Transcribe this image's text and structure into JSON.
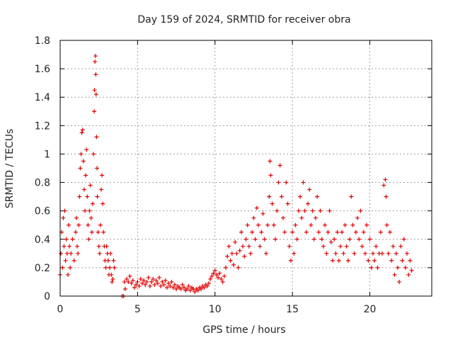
{
  "chart_data": {
    "type": "scatter",
    "title": "Day 159 of 2024, SRMTID for receiver obra",
    "xlabel": "GPS time / hours",
    "ylabel": "SRMTID / TECUs",
    "xlim": [
      0,
      24
    ],
    "ylim": [
      0,
      1.8
    ],
    "grid": true,
    "marker": "+",
    "x_ticks": [
      0,
      5,
      10,
      15,
      20
    ],
    "y_ticks": [
      0,
      0.2,
      0.4,
      0.6,
      0.8,
      1,
      1.2,
      1.4,
      1.6,
      1.8
    ],
    "x_tick_labels": [
      "0",
      "5",
      "10",
      "15",
      "20"
    ],
    "y_tick_labels": [
      "0",
      "0.2",
      "0.4",
      "0.6",
      "0.8",
      "1",
      "1.2",
      "1.4",
      "1.6",
      "1.8"
    ],
    "colors": {
      "points": "#e00000",
      "grid": "#a0a0a0",
      "axis": "#000000"
    },
    "series": [
      {
        "name": "SRMTID",
        "points": [
          [
            0.0,
            0.15
          ],
          [
            0.05,
            0.3
          ],
          [
            0.1,
            0.45
          ],
          [
            0.15,
            0.2
          ],
          [
            0.2,
            0.55
          ],
          [
            0.25,
            0.35
          ],
          [
            0.3,
            0.6
          ],
          [
            0.35,
            0.25
          ],
          [
            0.4,
            0.4
          ],
          [
            0.45,
            0.3
          ],
          [
            0.5,
            0.15
          ],
          [
            0.55,
            0.5
          ],
          [
            0.6,
            0.35
          ],
          [
            0.65,
            0.2
          ],
          [
            0.7,
            0.3
          ],
          [
            0.8,
            0.4
          ],
          [
            0.9,
            0.25
          ],
          [
            1.0,
            0.45
          ],
          [
            1.05,
            0.55
          ],
          [
            1.1,
            0.35
          ],
          [
            1.15,
            0.3
          ],
          [
            1.2,
            0.5
          ],
          [
            1.25,
            0.7
          ],
          [
            1.3,
            0.9
          ],
          [
            1.35,
            1.0
          ],
          [
            1.4,
            1.15
          ],
          [
            1.45,
            1.17
          ],
          [
            1.5,
            0.95
          ],
          [
            1.55,
            0.75
          ],
          [
            1.6,
            0.6
          ],
          [
            1.65,
            0.85
          ],
          [
            1.7,
            1.03
          ],
          [
            1.75,
            0.7
          ],
          [
            1.8,
            0.5
          ],
          [
            1.85,
            0.4
          ],
          [
            1.9,
            0.6
          ],
          [
            1.95,
            0.78
          ],
          [
            2.0,
            0.55
          ],
          [
            2.05,
            0.45
          ],
          [
            2.1,
            0.65
          ],
          [
            2.15,
            1.0
          ],
          [
            2.2,
            1.3
          ],
          [
            2.22,
            1.45
          ],
          [
            2.25,
            1.65
          ],
          [
            2.28,
            1.69
          ],
          [
            2.3,
            1.56
          ],
          [
            2.32,
            1.42
          ],
          [
            2.35,
            1.12
          ],
          [
            2.38,
            0.9
          ],
          [
            2.4,
            0.7
          ],
          [
            2.45,
            0.45
          ],
          [
            2.5,
            0.35
          ],
          [
            2.55,
            0.3
          ],
          [
            2.6,
            0.5
          ],
          [
            2.65,
            0.75
          ],
          [
            2.7,
            0.85
          ],
          [
            2.75,
            0.65
          ],
          [
            2.8,
            0.45
          ],
          [
            2.85,
            0.35
          ],
          [
            2.9,
            0.25
          ],
          [
            2.95,
            0.2
          ],
          [
            3.0,
            0.35
          ],
          [
            3.05,
            0.3
          ],
          [
            3.1,
            0.25
          ],
          [
            3.15,
            0.15
          ],
          [
            3.2,
            0.2
          ],
          [
            3.25,
            0.3
          ],
          [
            3.3,
            0.15
          ],
          [
            3.35,
            0.1
          ],
          [
            3.4,
            0.12
          ],
          [
            3.45,
            0.25
          ],
          [
            3.5,
            0.2
          ],
          [
            4.0,
            0.0
          ],
          [
            4.1,
            0.0
          ],
          [
            4.15,
            0.1
          ],
          [
            4.2,
            0.05
          ],
          [
            4.3,
            0.12
          ],
          [
            4.4,
            0.1
          ],
          [
            4.5,
            0.14
          ],
          [
            4.6,
            0.09
          ],
          [
            4.7,
            0.11
          ],
          [
            4.8,
            0.06
          ],
          [
            4.9,
            0.08
          ],
          [
            5.0,
            0.1
          ],
          [
            5.1,
            0.07
          ],
          [
            5.2,
            0.12
          ],
          [
            5.3,
            0.09
          ],
          [
            5.4,
            0.11
          ],
          [
            5.5,
            0.08
          ],
          [
            5.6,
            0.1
          ],
          [
            5.7,
            0.13
          ],
          [
            5.8,
            0.07
          ],
          [
            5.9,
            0.1
          ],
          [
            6.0,
            0.12
          ],
          [
            6.1,
            0.08
          ],
          [
            6.2,
            0.11
          ],
          [
            6.3,
            0.09
          ],
          [
            6.4,
            0.13
          ],
          [
            6.5,
            0.07
          ],
          [
            6.6,
            0.1
          ],
          [
            6.7,
            0.08
          ],
          [
            6.8,
            0.11
          ],
          [
            6.9,
            0.06
          ],
          [
            7.0,
            0.09
          ],
          [
            7.1,
            0.07
          ],
          [
            7.2,
            0.1
          ],
          [
            7.3,
            0.06
          ],
          [
            7.4,
            0.08
          ],
          [
            7.5,
            0.05
          ],
          [
            7.6,
            0.07
          ],
          [
            7.7,
            0.06
          ],
          [
            7.8,
            0.05
          ],
          [
            7.9,
            0.08
          ],
          [
            8.0,
            0.06
          ],
          [
            8.1,
            0.04
          ],
          [
            8.2,
            0.05
          ],
          [
            8.3,
            0.07
          ],
          [
            8.4,
            0.04
          ],
          [
            8.5,
            0.06
          ],
          [
            8.6,
            0.05
          ],
          [
            8.7,
            0.03
          ],
          [
            8.8,
            0.05
          ],
          [
            8.9,
            0.04
          ],
          [
            9.0,
            0.06
          ],
          [
            9.1,
            0.05
          ],
          [
            9.2,
            0.07
          ],
          [
            9.3,
            0.06
          ],
          [
            9.4,
            0.08
          ],
          [
            9.5,
            0.07
          ],
          [
            9.6,
            0.09
          ],
          [
            9.7,
            0.12
          ],
          [
            9.8,
            0.14
          ],
          [
            9.9,
            0.16
          ],
          [
            10.0,
            0.18
          ],
          [
            10.1,
            0.15
          ],
          [
            10.2,
            0.13
          ],
          [
            10.3,
            0.16
          ],
          [
            10.4,
            0.12
          ],
          [
            10.5,
            0.1
          ],
          [
            10.6,
            0.14
          ],
          [
            10.7,
            0.2
          ],
          [
            10.8,
            0.28
          ],
          [
            10.9,
            0.35
          ],
          [
            11.0,
            0.25
          ],
          [
            11.1,
            0.3
          ],
          [
            11.2,
            0.22
          ],
          [
            11.3,
            0.38
          ],
          [
            11.4,
            0.3
          ],
          [
            11.5,
            0.2
          ],
          [
            11.6,
            0.32
          ],
          [
            11.7,
            0.45
          ],
          [
            11.8,
            0.35
          ],
          [
            11.9,
            0.28
          ],
          [
            12.0,
            0.4
          ],
          [
            12.1,
            0.5
          ],
          [
            12.2,
            0.35
          ],
          [
            12.3,
            0.3
          ],
          [
            12.4,
            0.45
          ],
          [
            12.5,
            0.55
          ],
          [
            12.6,
            0.4
          ],
          [
            12.7,
            0.62
          ],
          [
            12.8,
            0.5
          ],
          [
            12.9,
            0.35
          ],
          [
            13.0,
            0.45
          ],
          [
            13.1,
            0.58
          ],
          [
            13.2,
            0.4
          ],
          [
            13.3,
            0.3
          ],
          [
            13.4,
            0.5
          ],
          [
            13.5,
            0.7
          ],
          [
            13.55,
            0.95
          ],
          [
            13.6,
            0.85
          ],
          [
            13.7,
            0.65
          ],
          [
            13.8,
            0.5
          ],
          [
            13.9,
            0.4
          ],
          [
            14.0,
            0.6
          ],
          [
            14.1,
            0.8
          ],
          [
            14.2,
            0.92
          ],
          [
            14.3,
            0.7
          ],
          [
            14.4,
            0.55
          ],
          [
            14.5,
            0.45
          ],
          [
            14.6,
            0.8
          ],
          [
            14.7,
            0.65
          ],
          [
            14.8,
            0.35
          ],
          [
            14.9,
            0.25
          ],
          [
            15.0,
            0.45
          ],
          [
            15.1,
            0.3
          ],
          [
            15.2,
            0.5
          ],
          [
            15.3,
            0.4
          ],
          [
            15.4,
            0.6
          ],
          [
            15.5,
            0.7
          ],
          [
            15.6,
            0.55
          ],
          [
            15.7,
            0.8
          ],
          [
            15.8,
            0.6
          ],
          [
            15.9,
            0.45
          ],
          [
            16.0,
            0.65
          ],
          [
            16.1,
            0.75
          ],
          [
            16.2,
            0.5
          ],
          [
            16.3,
            0.6
          ],
          [
            16.4,
            0.4
          ],
          [
            16.5,
            0.55
          ],
          [
            16.6,
            0.7
          ],
          [
            16.7,
            0.45
          ],
          [
            16.8,
            0.6
          ],
          [
            16.9,
            0.4
          ],
          [
            17.0,
            0.35
          ],
          [
            17.1,
            0.5
          ],
          [
            17.2,
            0.3
          ],
          [
            17.3,
            0.45
          ],
          [
            17.4,
            0.6
          ],
          [
            17.5,
            0.38
          ],
          [
            17.6,
            0.25
          ],
          [
            17.7,
            0.4
          ],
          [
            17.8,
            0.3
          ],
          [
            17.9,
            0.45
          ],
          [
            18.0,
            0.25
          ],
          [
            18.1,
            0.35
          ],
          [
            18.2,
            0.45
          ],
          [
            18.3,
            0.3
          ],
          [
            18.4,
            0.5
          ],
          [
            18.5,
            0.35
          ],
          [
            18.6,
            0.25
          ],
          [
            18.7,
            0.4
          ],
          [
            18.8,
            0.7
          ],
          [
            18.9,
            0.5
          ],
          [
            19.0,
            0.3
          ],
          [
            19.1,
            0.45
          ],
          [
            19.2,
            0.55
          ],
          [
            19.3,
            0.4
          ],
          [
            19.4,
            0.6
          ],
          [
            19.5,
            0.35
          ],
          [
            19.6,
            0.45
          ],
          [
            19.7,
            0.3
          ],
          [
            19.8,
            0.5
          ],
          [
            19.9,
            0.25
          ],
          [
            20.0,
            0.4
          ],
          [
            20.1,
            0.2
          ],
          [
            20.2,
            0.3
          ],
          [
            20.3,
            0.25
          ],
          [
            20.4,
            0.35
          ],
          [
            20.5,
            0.2
          ],
          [
            20.6,
            0.3
          ],
          [
            20.7,
            0.45
          ],
          [
            20.8,
            0.3
          ],
          [
            20.9,
            0.78
          ],
          [
            21.0,
            0.82
          ],
          [
            21.05,
            0.7
          ],
          [
            21.1,
            0.5
          ],
          [
            21.2,
            0.3
          ],
          [
            21.3,
            0.45
          ],
          [
            21.4,
            0.25
          ],
          [
            21.5,
            0.35
          ],
          [
            21.6,
            0.15
          ],
          [
            21.7,
            0.3
          ],
          [
            21.8,
            0.2
          ],
          [
            21.9,
            0.1
          ],
          [
            22.0,
            0.35
          ],
          [
            22.1,
            0.25
          ],
          [
            22.2,
            0.4
          ],
          [
            22.3,
            0.2
          ],
          [
            22.4,
            0.3
          ],
          [
            22.5,
            0.15
          ],
          [
            22.6,
            0.25
          ],
          [
            22.7,
            0.18
          ]
        ]
      }
    ]
  }
}
